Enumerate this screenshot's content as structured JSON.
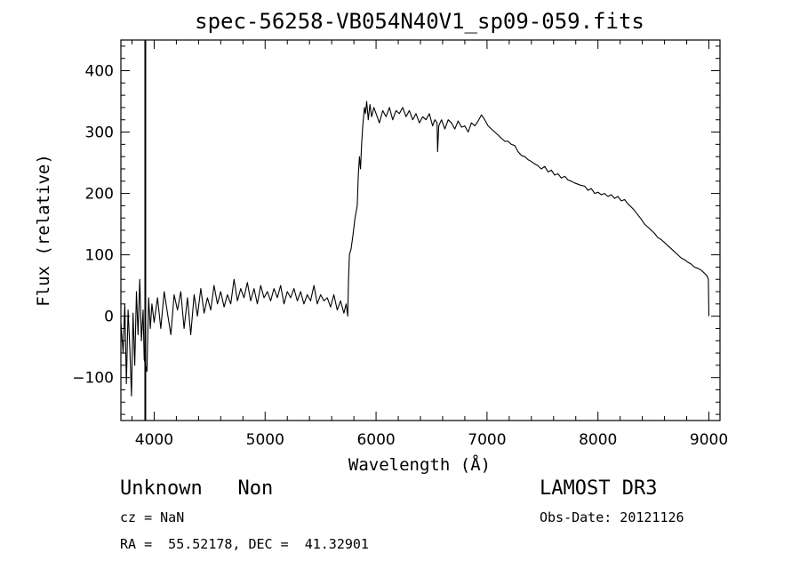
{
  "chart_data": {
    "type": "line",
    "title": "spec-56258-VB054N40V1_sp09-059.fits",
    "xlabel": "Wavelength (Å)",
    "ylabel": "Flux (relative)",
    "xlim": [
      3700,
      9100
    ],
    "ylim": [
      -170,
      450
    ],
    "xticks": [
      4000,
      5000,
      6000,
      7000,
      8000,
      9000
    ],
    "yticks": [
      -100,
      0,
      100,
      200,
      300,
      400
    ],
    "vline": 3920,
    "grid": false,
    "series": [
      {
        "values": [
          [
            3700,
            -10
          ],
          [
            3720,
            -60
          ],
          [
            3735,
            20
          ],
          [
            3750,
            -110
          ],
          [
            3765,
            10
          ],
          [
            3780,
            -50
          ],
          [
            3795,
            -130
          ],
          [
            3810,
            5
          ],
          [
            3825,
            -80
          ],
          [
            3840,
            40
          ],
          [
            3855,
            -30
          ],
          [
            3870,
            60
          ],
          [
            3885,
            -40
          ],
          [
            3900,
            10
          ],
          [
            3910,
            -70
          ],
          [
            3935,
            -90
          ],
          [
            3950,
            30
          ],
          [
            3965,
            -20
          ],
          [
            3980,
            20
          ],
          [
            4000,
            -10
          ],
          [
            4030,
            30
          ],
          [
            4060,
            -20
          ],
          [
            4090,
            40
          ],
          [
            4120,
            5
          ],
          [
            4150,
            -30
          ],
          [
            4180,
            35
          ],
          [
            4210,
            10
          ],
          [
            4240,
            40
          ],
          [
            4270,
            -20
          ],
          [
            4300,
            30
          ],
          [
            4330,
            -30
          ],
          [
            4360,
            35
          ],
          [
            4390,
            0
          ],
          [
            4420,
            45
          ],
          [
            4450,
            5
          ],
          [
            4480,
            30
          ],
          [
            4510,
            10
          ],
          [
            4540,
            50
          ],
          [
            4570,
            20
          ],
          [
            4600,
            40
          ],
          [
            4630,
            15
          ],
          [
            4660,
            35
          ],
          [
            4690,
            20
          ],
          [
            4720,
            60
          ],
          [
            4750,
            25
          ],
          [
            4780,
            45
          ],
          [
            4810,
            30
          ],
          [
            4840,
            55
          ],
          [
            4870,
            25
          ],
          [
            4900,
            45
          ],
          [
            4930,
            20
          ],
          [
            4960,
            50
          ],
          [
            4990,
            30
          ],
          [
            5020,
            40
          ],
          [
            5050,
            25
          ],
          [
            5080,
            45
          ],
          [
            5110,
            30
          ],
          [
            5140,
            50
          ],
          [
            5170,
            20
          ],
          [
            5200,
            40
          ],
          [
            5230,
            30
          ],
          [
            5260,
            45
          ],
          [
            5290,
            25
          ],
          [
            5320,
            40
          ],
          [
            5350,
            20
          ],
          [
            5380,
            35
          ],
          [
            5410,
            25
          ],
          [
            5440,
            50
          ],
          [
            5470,
            20
          ],
          [
            5500,
            35
          ],
          [
            5530,
            25
          ],
          [
            5560,
            30
          ],
          [
            5590,
            15
          ],
          [
            5620,
            35
          ],
          [
            5650,
            10
          ],
          [
            5680,
            25
          ],
          [
            5710,
            5
          ],
          [
            5730,
            20
          ],
          [
            5745,
            0
          ],
          [
            5752,
            60
          ],
          [
            5760,
            100
          ],
          [
            5775,
            110
          ],
          [
            5790,
            130
          ],
          [
            5810,
            160
          ],
          [
            5830,
            180
          ],
          [
            5840,
            230
          ],
          [
            5850,
            260
          ],
          [
            5860,
            240
          ],
          [
            5870,
            280
          ],
          [
            5880,
            310
          ],
          [
            5895,
            340
          ],
          [
            5905,
            330
          ],
          [
            5915,
            350
          ],
          [
            5930,
            320
          ],
          [
            5945,
            345
          ],
          [
            5960,
            325
          ],
          [
            5980,
            340
          ],
          [
            6000,
            330
          ],
          [
            6030,
            315
          ],
          [
            6060,
            335
          ],
          [
            6090,
            325
          ],
          [
            6120,
            340
          ],
          [
            6150,
            320
          ],
          [
            6180,
            335
          ],
          [
            6210,
            330
          ],
          [
            6240,
            340
          ],
          [
            6270,
            325
          ],
          [
            6300,
            335
          ],
          [
            6330,
            320
          ],
          [
            6360,
            330
          ],
          [
            6390,
            315
          ],
          [
            6420,
            325
          ],
          [
            6450,
            320
          ],
          [
            6480,
            330
          ],
          [
            6510,
            310
          ],
          [
            6530,
            320
          ],
          [
            6550,
            315
          ],
          [
            6555,
            268
          ],
          [
            6565,
            310
          ],
          [
            6590,
            320
          ],
          [
            6620,
            305
          ],
          [
            6650,
            320
          ],
          [
            6680,
            315
          ],
          [
            6710,
            305
          ],
          [
            6740,
            318
          ],
          [
            6770,
            308
          ],
          [
            6800,
            310
          ],
          [
            6830,
            300
          ],
          [
            6860,
            315
          ],
          [
            6890,
            310
          ],
          [
            6920,
            318
          ],
          [
            6950,
            328
          ],
          [
            6980,
            320
          ],
          [
            7010,
            310
          ],
          [
            7040,
            305
          ],
          [
            7070,
            300
          ],
          [
            7100,
            295
          ],
          [
            7130,
            290
          ],
          [
            7160,
            285
          ],
          [
            7190,
            285
          ],
          [
            7220,
            280
          ],
          [
            7250,
            278
          ],
          [
            7280,
            268
          ],
          [
            7310,
            262
          ],
          [
            7340,
            260
          ],
          [
            7370,
            255
          ],
          [
            7400,
            252
          ],
          [
            7430,
            248
          ],
          [
            7460,
            245
          ],
          [
            7490,
            240
          ],
          [
            7520,
            244
          ],
          [
            7550,
            235
          ],
          [
            7580,
            238
          ],
          [
            7610,
            230
          ],
          [
            7640,
            232
          ],
          [
            7670,
            225
          ],
          [
            7700,
            228
          ],
          [
            7730,
            222
          ],
          [
            7760,
            220
          ],
          [
            7790,
            217
          ],
          [
            7820,
            215
          ],
          [
            7850,
            213
          ],
          [
            7880,
            212
          ],
          [
            7910,
            205
          ],
          [
            7940,
            208
          ],
          [
            7970,
            200
          ],
          [
            8000,
            202
          ],
          [
            8030,
            198
          ],
          [
            8060,
            200
          ],
          [
            8090,
            195
          ],
          [
            8120,
            198
          ],
          [
            8150,
            192
          ],
          [
            8180,
            195
          ],
          [
            8210,
            188
          ],
          [
            8240,
            190
          ],
          [
            8270,
            183
          ],
          [
            8300,
            178
          ],
          [
            8330,
            172
          ],
          [
            8360,
            165
          ],
          [
            8390,
            158
          ],
          [
            8420,
            150
          ],
          [
            8450,
            145
          ],
          [
            8480,
            140
          ],
          [
            8510,
            135
          ],
          [
            8540,
            128
          ],
          [
            8570,
            125
          ],
          [
            8600,
            120
          ],
          [
            8630,
            115
          ],
          [
            8660,
            110
          ],
          [
            8690,
            105
          ],
          [
            8720,
            100
          ],
          [
            8750,
            95
          ],
          [
            8780,
            92
          ],
          [
            8810,
            88
          ],
          [
            8840,
            85
          ],
          [
            8870,
            80
          ],
          [
            8900,
            78
          ],
          [
            8930,
            75
          ],
          [
            8960,
            70
          ],
          [
            8985,
            65
          ],
          [
            8995,
            60
          ],
          [
            9000,
            0
          ]
        ]
      }
    ]
  },
  "footer": {
    "left_line1": "Unknown   Non",
    "left_line2": "cz = NaN",
    "left_line3": "RA =  55.52178, DEC =  41.32901",
    "right_line1": "LAMOST DR3",
    "right_line2": "Obs-Date: 20121126"
  }
}
